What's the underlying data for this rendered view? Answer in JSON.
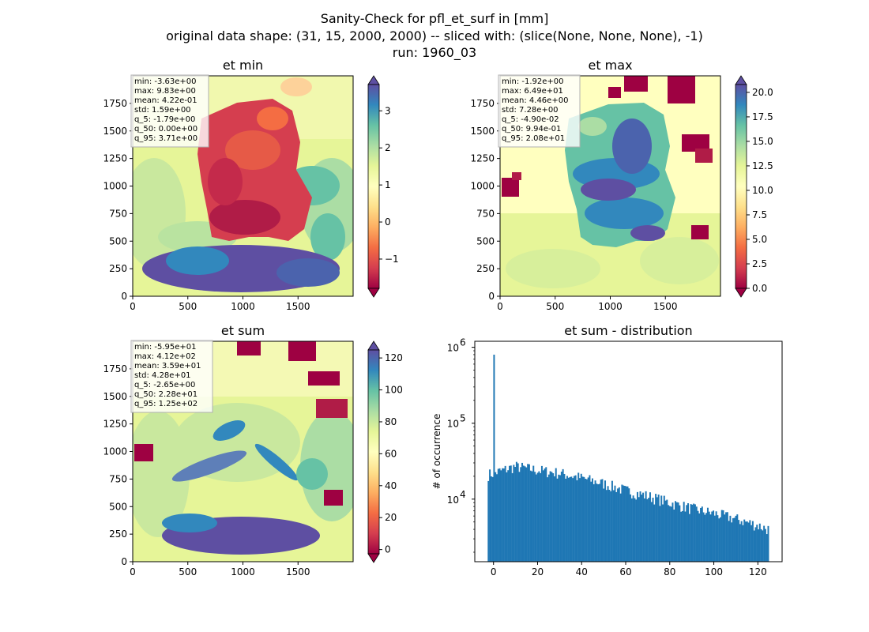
{
  "figure": {
    "title_lines": [
      "Sanity-Check for pfl_et_surf in [mm]",
      "original data shape: (31, 15, 2000, 2000) -- sliced with: (slice(None, None, None), -1)",
      "run: 1960_03"
    ]
  },
  "chart_data": [
    {
      "type": "heatmap",
      "title": "et min",
      "colormap": "Spectral",
      "xlim": [
        0,
        2000
      ],
      "ylim": [
        0,
        2000
      ],
      "x_ticks": [
        0,
        500,
        1000,
        1500
      ],
      "y_ticks": [
        0,
        250,
        500,
        750,
        1000,
        1250,
        1500,
        1750
      ],
      "colorbar": {
        "min": -1.79,
        "max": 3.71,
        "ticks": [
          "−1",
          "0",
          "1",
          "2",
          "3"
        ],
        "tick_values": [
          -1,
          0,
          1,
          2,
          3
        ],
        "extend": "both"
      },
      "stats": [
        "min: -3.63e+00",
        "max: 9.83e+00",
        "mean: 4.22e-01",
        "std: 1.59e+00",
        "q_5: -1.79e+00",
        "q_50: 0.00e+00",
        "q_95: 3.71e+00"
      ]
    },
    {
      "type": "heatmap",
      "title": "et max",
      "colormap": "Spectral",
      "xlim": [
        0,
        2000
      ],
      "ylim": [
        0,
        2000
      ],
      "x_ticks": [
        0,
        500,
        1000,
        1500
      ],
      "y_ticks": [
        0,
        250,
        500,
        750,
        1000,
        1250,
        1500,
        1750
      ],
      "colorbar": {
        "min": 0.0,
        "max": 20.8,
        "ticks": [
          "0.0",
          "2.5",
          "5.0",
          "7.5",
          "10.0",
          "12.5",
          "15.0",
          "17.5",
          "20.0"
        ],
        "tick_values": [
          0,
          2.5,
          5,
          7.5,
          10,
          12.5,
          15,
          17.5,
          20
        ],
        "extend": "both"
      },
      "stats": [
        "min: -1.92e+00",
        "max: 6.49e+01",
        "mean: 4.46e+00",
        "std: 7.28e+00",
        "q_5: -4.90e-02",
        "q_50: 9.94e-01",
        "q_95: 2.08e+01"
      ]
    },
    {
      "type": "heatmap",
      "title": "et sum",
      "colormap": "Spectral",
      "xlim": [
        0,
        2000
      ],
      "ylim": [
        0,
        2000
      ],
      "x_ticks": [
        0,
        500,
        1000,
        1500
      ],
      "y_ticks": [
        0,
        250,
        500,
        750,
        1000,
        1250,
        1500,
        1750
      ],
      "colorbar": {
        "min": -2.65,
        "max": 125,
        "ticks": [
          "0",
          "20",
          "40",
          "60",
          "80",
          "100",
          "120"
        ],
        "tick_values": [
          0,
          20,
          40,
          60,
          80,
          100,
          120
        ],
        "extend": "both"
      },
      "stats": [
        "min: -5.95e+01",
        "max: 4.12e+02",
        "mean: 3.59e+01",
        "std: 4.28e+01",
        "q_5: -2.65e+00",
        "q_50: 2.28e+01",
        "q_95: 1.25e+02"
      ]
    },
    {
      "type": "bar",
      "title": "et sum - distribution",
      "ylabel": "# of occurrence",
      "xlabel": "",
      "y_scale": "log",
      "xlim": [
        -8.5,
        131
      ],
      "ylim": [
        1500,
        1200000
      ],
      "x_ticks": [
        0,
        20,
        40,
        60,
        80,
        100,
        120
      ],
      "y_tick_values": [
        10000,
        100000,
        1000000
      ],
      "y_tick_exponents": [
        "4",
        "5",
        "6"
      ],
      "color": "#1f77b4",
      "bins": {
        "start": -2.65,
        "end": 125,
        "count": 200
      },
      "spike": {
        "x": 0,
        "count": 800000
      },
      "key_counts": [
        {
          "x": -2.65,
          "count": 21000
        },
        {
          "x": 0,
          "count": 22000
        },
        {
          "x": 10,
          "count": 27000
        },
        {
          "x": 20,
          "count": 24000
        },
        {
          "x": 30,
          "count": 22000
        },
        {
          "x": 40,
          "count": 19000
        },
        {
          "x": 50,
          "count": 16000
        },
        {
          "x": 60,
          "count": 13000
        },
        {
          "x": 70,
          "count": 11000
        },
        {
          "x": 80,
          "count": 9000
        },
        {
          "x": 90,
          "count": 7500
        },
        {
          "x": 100,
          "count": 6500
        },
        {
          "x": 110,
          "count": 5500
        },
        {
          "x": 120,
          "count": 4500
        },
        {
          "x": 125,
          "count": 4000
        }
      ]
    }
  ]
}
